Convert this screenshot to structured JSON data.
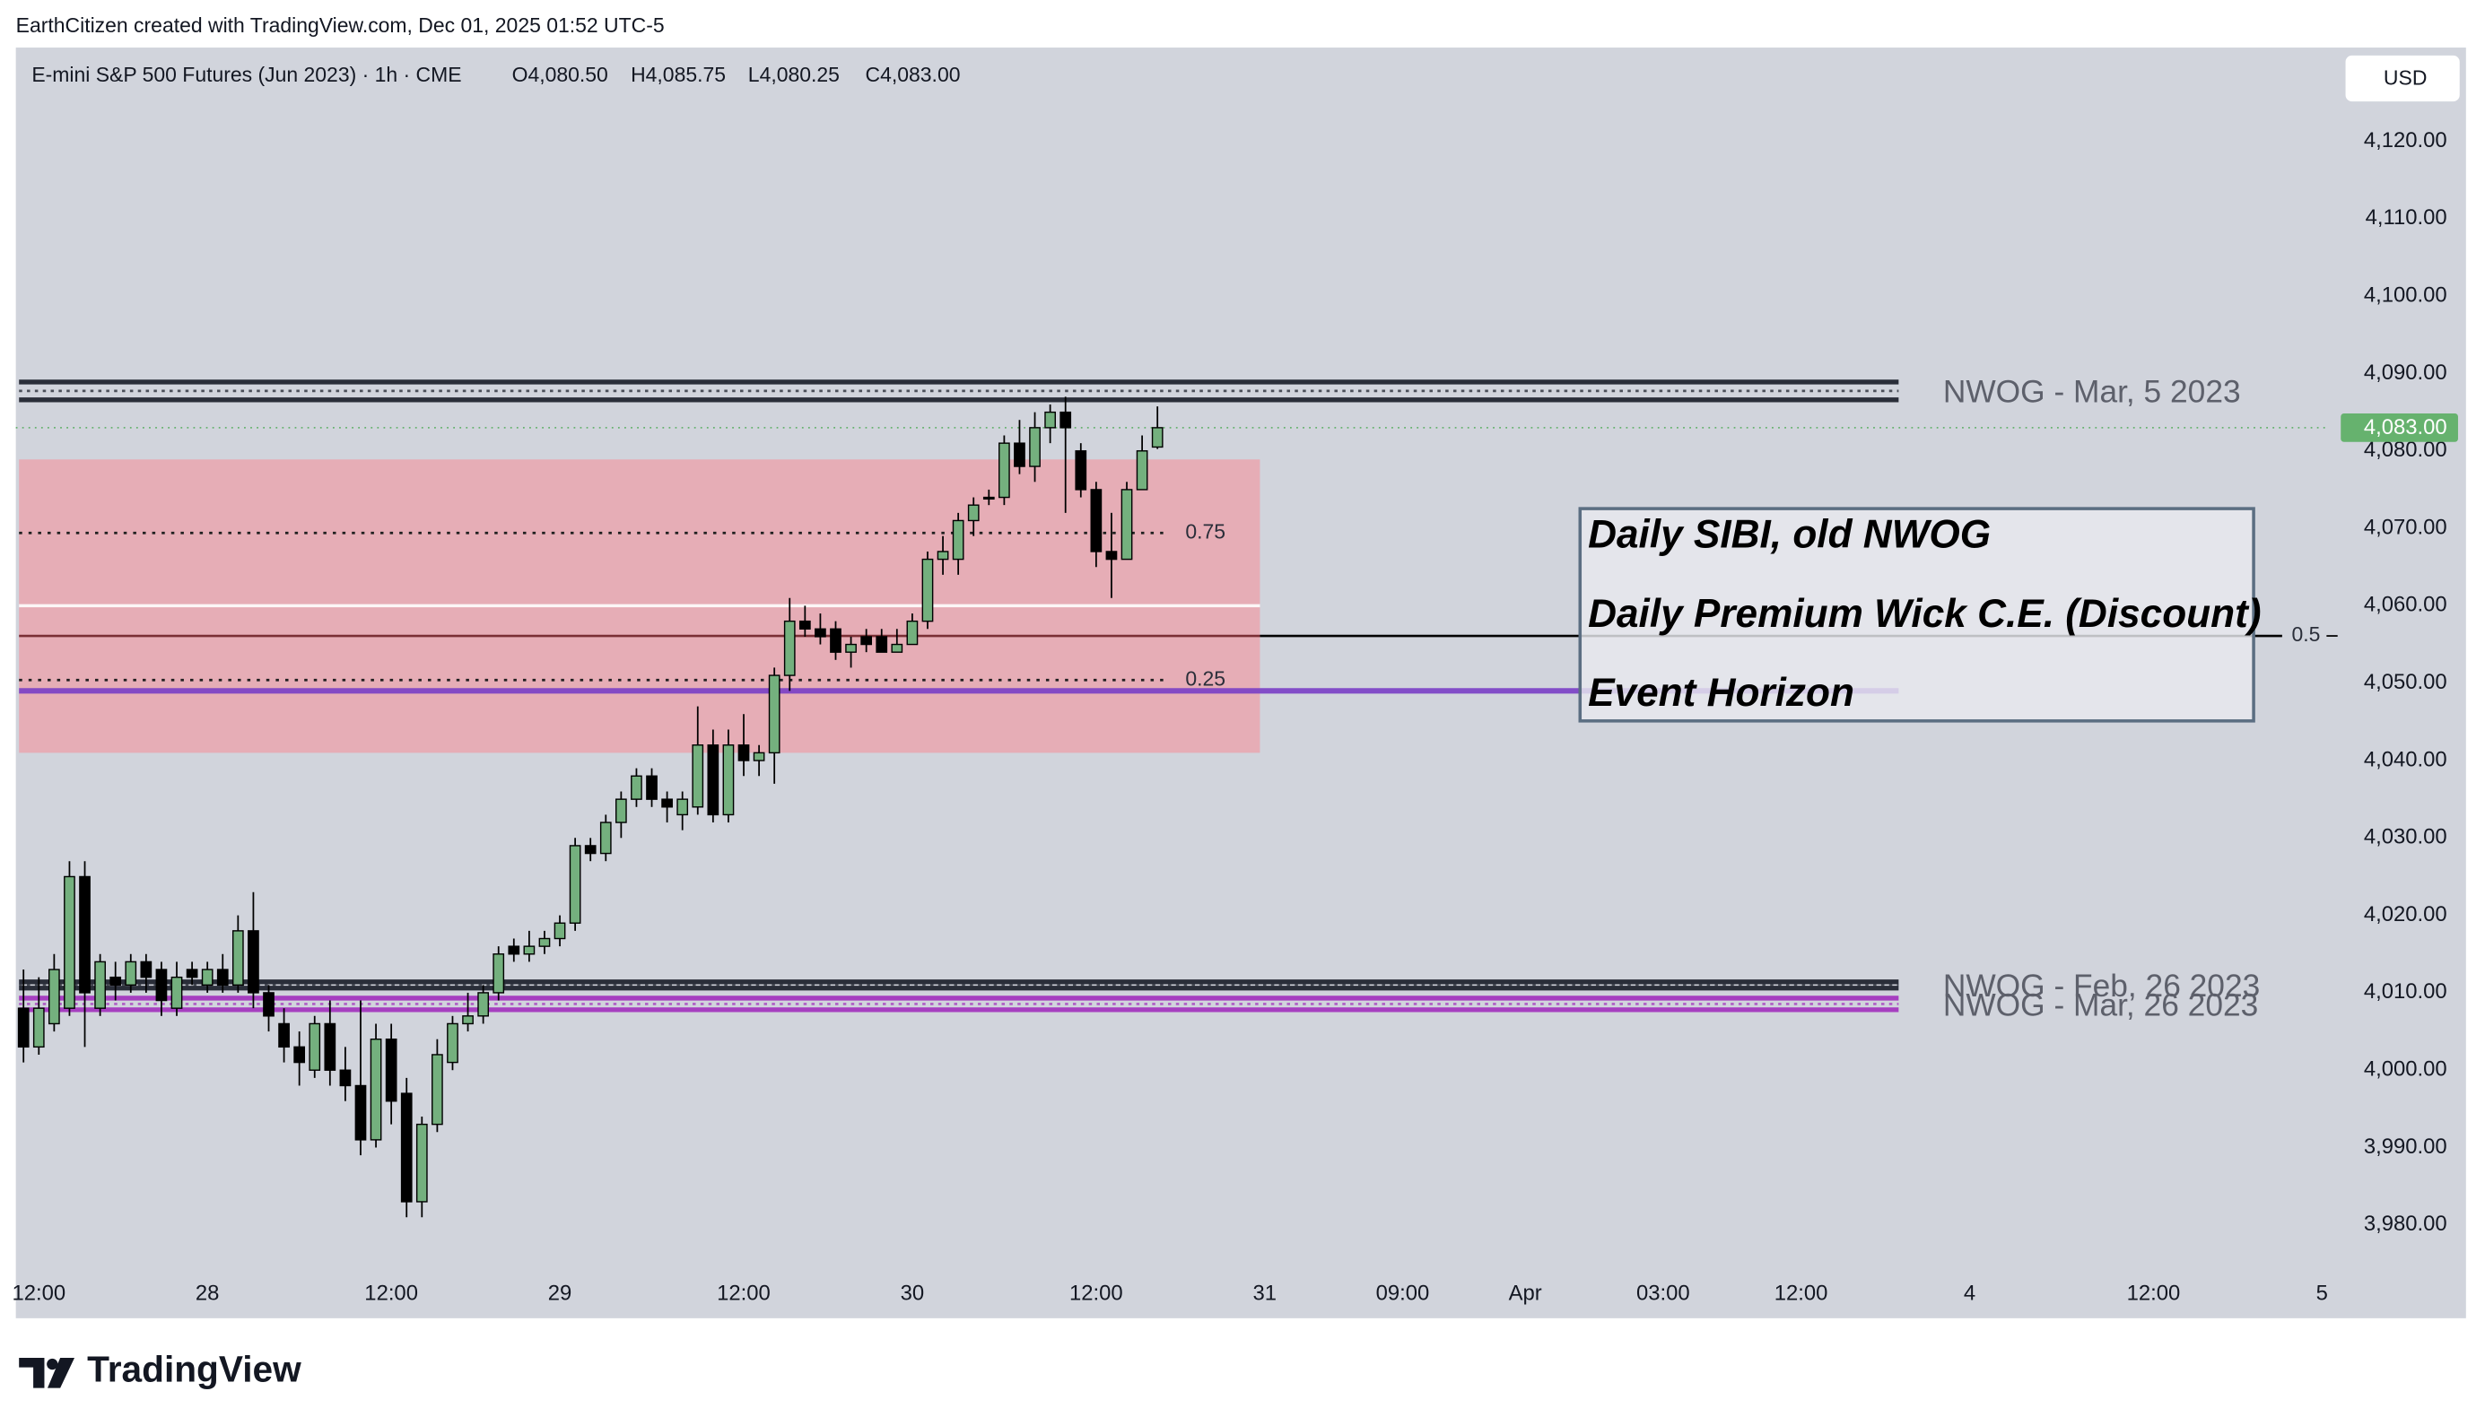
{
  "header": {
    "credit": "EarthCitizen created with TradingView.com, Dec 01, 2025 01:52 UTC-5",
    "symbol": "E-mini S&P 500 Futures (Jun 2023) · 1h · CME",
    "ohlc": [
      "O4,080.50",
      "H4,085.75",
      "L4,080.25",
      "C4,083.00"
    ],
    "currency": "USD"
  },
  "chart_data": {
    "type": "candlestick",
    "categories": [
      null,
      "12:00",
      null,
      null,
      null,
      null,
      null,
      null,
      null,
      null,
      null,
      null,
      "28",
      null,
      null,
      null,
      null,
      null,
      null,
      null,
      null,
      null,
      null,
      null,
      "12:00",
      null,
      null,
      null,
      null,
      null,
      null,
      null,
      null,
      null,
      null,
      "29",
      null,
      null,
      null,
      null,
      null,
      null,
      null,
      null,
      null,
      null,
      null,
      "12:00",
      null,
      null,
      null,
      null,
      null,
      null,
      null,
      null,
      null,
      null,
      "30",
      null,
      null,
      null,
      null,
      null,
      null,
      null,
      null,
      null,
      null,
      null,
      "12:00",
      null,
      null,
      null,
      null,
      null,
      null,
      null,
      null,
      null,
      null,
      "31",
      null,
      null,
      null,
      null,
      null,
      null,
      null,
      null,
      "09:00",
      null,
      null,
      null,
      null,
      null,
      null,
      null,
      "Apr",
      null,
      null,
      null,
      null,
      null,
      null,
      null,
      null,
      "03:00",
      null,
      null,
      null,
      null,
      null,
      null,
      null,
      null,
      "12:00",
      null,
      null,
      null,
      null,
      null,
      null,
      null,
      null,
      null,
      null,
      "4",
      null,
      null,
      null,
      null,
      null,
      null,
      null,
      null,
      null,
      null,
      null,
      "12:00",
      null,
      null,
      null,
      null,
      null,
      null,
      null,
      null,
      null,
      null,
      "5"
    ],
    "open": [
      4008,
      4003,
      4006,
      4008,
      4025,
      4008,
      4012,
      4011,
      4014,
      4013,
      4008,
      4013,
      4011,
      4013,
      4011,
      4018,
      4010,
      4006,
      4003,
      4000,
      4006,
      4000,
      3998,
      3991,
      4004,
      3997,
      3983,
      3993,
      4001,
      4006,
      4007,
      4010,
      4016,
      4015,
      4016,
      4017,
      4019,
      4029,
      4028,
      4032,
      4035,
      4038,
      4035,
      4033,
      4034,
      4042,
      4033,
      4042,
      4040,
      4041,
      4051,
      4058,
      4057,
      4057,
      4054,
      4056,
      4056,
      4054,
      4055,
      4058,
      4066,
      4066,
      4071,
      4074,
      4074,
      4081,
      4078,
      4083,
      4085,
      4080,
      4075,
      4067,
      4066,
      4075,
      4080.5,
      null,
      null,
      null,
      null,
      null,
      null,
      null,
      null,
      null,
      null,
      null,
      null,
      null,
      null,
      null,
      null,
      null,
      null,
      null,
      null,
      null,
      null,
      null,
      null,
      null,
      null,
      null,
      null,
      null,
      null,
      null,
      null,
      null,
      null,
      null,
      null,
      null,
      null,
      null,
      null,
      null,
      null,
      null,
      null,
      null,
      null,
      null,
      null,
      null,
      null,
      null,
      null,
      null,
      null,
      null,
      null,
      null,
      null,
      null,
      null,
      null,
      null,
      null,
      null,
      null,
      null,
      null,
      null,
      null,
      null,
      null,
      null,
      null,
      null,
      null,
      null
    ],
    "high": [
      4013,
      4012,
      4015,
      4027,
      4027,
      4015,
      4014,
      4015,
      4015,
      4014,
      4014,
      4014,
      4014,
      4015,
      4020,
      4023,
      4011,
      4008,
      4005,
      4007,
      4009,
      4003,
      4009,
      4006,
      4006,
      3999,
      3994,
      4004,
      4007,
      4010,
      4011,
      4016,
      4017,
      4018,
      4018,
      4020,
      4030,
      4030,
      4033,
      4036,
      4039,
      4039,
      4036,
      4036,
      4047,
      4044,
      4044,
      4046,
      4042,
      4052,
      4061,
      4060,
      4059,
      4058,
      4056,
      4057,
      4057,
      4057,
      4059,
      4067,
      4069,
      4072,
      4074,
      4075,
      4082,
      4084,
      4085,
      4086,
      4087,
      4081,
      4076,
      4072,
      4076,
      4082,
      4085.75,
      null,
      null,
      null,
      null,
      null,
      null,
      null,
      null,
      null,
      null,
      null,
      null,
      null,
      null,
      null,
      null,
      null,
      null,
      null,
      null,
      null,
      null,
      null,
      null,
      null,
      null,
      null,
      null,
      null,
      null,
      null,
      null,
      null,
      null,
      null,
      null,
      null,
      null,
      null,
      null,
      null,
      null,
      null,
      null,
      null,
      null,
      null,
      null,
      null,
      null,
      null,
      null,
      null,
      null,
      null,
      null,
      null,
      null,
      null,
      null,
      null,
      null,
      null,
      null,
      null,
      null,
      null,
      null,
      null,
      null,
      null,
      null,
      null,
      null,
      null,
      null
    ],
    "low": [
      4001,
      4002,
      4005,
      4007,
      4003,
      4007,
      4009,
      4010,
      4010,
      4007,
      4007,
      4011,
      4010,
      4010,
      4010,
      4008,
      4005,
      4001,
      3998,
      3999,
      3998,
      3996,
      3989,
      3990,
      3993,
      3981,
      3981,
      3992,
      4000,
      4005,
      4006,
      4009,
      4014,
      4014,
      4015,
      4016,
      4018,
      4027,
      4027,
      4030,
      4034,
      4034,
      4032,
      4031,
      4033,
      4032,
      4032,
      4038,
      4038,
      4037,
      4049,
      4056,
      4055,
      4053,
      4052,
      4054,
      4054,
      4054,
      4055,
      4057,
      4064,
      4064,
      4069,
      4073,
      4073,
      4077,
      4076,
      4081,
      4072,
      4074,
      4065,
      4061,
      4066,
      4075,
      4080.25,
      null,
      null,
      null,
      null,
      null,
      null,
      null,
      null,
      null,
      null,
      null,
      null,
      null,
      null,
      null,
      null,
      null,
      null,
      null,
      null,
      null,
      null,
      null,
      null,
      null,
      null,
      null,
      null,
      null,
      null,
      null,
      null,
      null,
      null,
      null,
      null,
      null,
      null,
      null,
      null,
      null,
      null,
      null,
      null,
      null,
      null,
      null,
      null,
      null,
      null,
      null,
      null,
      null,
      null,
      null,
      null,
      null,
      null,
      null,
      null,
      null,
      null,
      null,
      null,
      null,
      null,
      null,
      null,
      null,
      null,
      null,
      null,
      null,
      null,
      null,
      null
    ],
    "close": [
      4003,
      4008,
      4013,
      4025,
      4010,
      4014,
      4011,
      4014,
      4012,
      4009,
      4012,
      4012,
      4013,
      4011,
      4018,
      4010,
      4007,
      4003,
      4001,
      4006,
      4000,
      3998,
      3991,
      4004,
      3996,
      3983,
      3993,
      4002,
      4006,
      4007,
      4010,
      4015,
      4015,
      4016,
      4017,
      4019,
      4029,
      4028,
      4032,
      4035,
      4038,
      4035,
      4034,
      4035,
      4042,
      4033,
      4042,
      4040,
      4041,
      4051,
      4058,
      4057,
      4056,
      4054,
      4055,
      4055,
      4054,
      4055,
      4058,
      4066,
      4067,
      4071,
      4073,
      4074,
      4081,
      4078,
      4083,
      4085,
      4083,
      4075,
      4067,
      4066,
      4075,
      4080,
      4083,
      null,
      null,
      null,
      null,
      null,
      null,
      null,
      null,
      null,
      null,
      null,
      null,
      null,
      null,
      null,
      null,
      null,
      null,
      null,
      null,
      null,
      null,
      null,
      null,
      null,
      null,
      null,
      null,
      null,
      null,
      null,
      null,
      null,
      null,
      null,
      null,
      null,
      null,
      null,
      null,
      null,
      null,
      null,
      null,
      null,
      null,
      null,
      null,
      null,
      null,
      null,
      null,
      null,
      null,
      null,
      null,
      null,
      null,
      null,
      null,
      null,
      null,
      null,
      null,
      null,
      null,
      null,
      null,
      null,
      null,
      null,
      null,
      null,
      null,
      null,
      null
    ],
    "up_color": "#74b07e",
    "down_color": "#000000",
    "ylim": [
      3974.5,
      4131.7
    ],
    "yticks": [
      {
        "value": 3980,
        "label": "3,980.00"
      },
      {
        "value": 3990,
        "label": "3,990.00"
      },
      {
        "value": 4000,
        "label": "4,000.00"
      },
      {
        "value": 4010,
        "label": "4,010.00"
      },
      {
        "value": 4020,
        "label": "4,020.00"
      },
      {
        "value": 4030,
        "label": "4,030.00"
      },
      {
        "value": 4040,
        "label": "4,040.00"
      },
      {
        "value": 4050,
        "label": "4,050.00"
      },
      {
        "value": 4060,
        "label": "4,060.00"
      },
      {
        "value": 4070,
        "label": "4,070.00"
      },
      {
        "value": 4080,
        "label": "4,080.00"
      },
      {
        "value": 4090,
        "label": "4,090.00"
      },
      {
        "value": 4100,
        "label": "4,100.00"
      },
      {
        "value": 4110,
        "label": "4,110.00"
      },
      {
        "value": 4120,
        "label": "4,120.00"
      }
    ],
    "last_price": {
      "value": 4083,
      "label": "4,083.00",
      "color": "#66b26e"
    },
    "zones": [
      {
        "name": "NWOG - Mar, 5 2023",
        "top": 4088.9,
        "bottom": 4086.6,
        "color": "#2a2e39"
      },
      {
        "name": "NWOG - Feb, 26 2023",
        "top": 4011.4,
        "bottom": 4010.6,
        "color": "#2a2e39"
      },
      {
        "name": "NWOG - Mar, 26 2023",
        "top": 4009.3,
        "bottom": 4007.8,
        "color": "#a63fc0"
      }
    ],
    "sibi": {
      "top": 4078.9,
      "bottom": 4041.0,
      "color": "#eba3ac",
      "levels": [
        {
          "label": "0.75",
          "value": 4069.4
        },
        {
          "label": "0.5",
          "value": 4056.1,
          "extend": true
        },
        {
          "label": "0.25",
          "value": 4050.4
        }
      ]
    },
    "lines": [
      {
        "value": 4060,
        "color": "#ffffff"
      },
      {
        "value": 4049,
        "color": "#7a3fc6"
      }
    ],
    "note_box": [
      "Daily SIBI, old NWOG",
      "Daily Premium Wick C.E. (Discount)",
      "Event Horizon"
    ]
  },
  "footer": {
    "brand": "TradingView"
  }
}
